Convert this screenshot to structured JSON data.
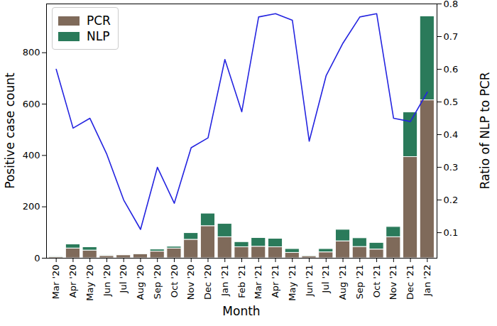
{
  "chart_data": {
    "type": "bar",
    "stacked": true,
    "legend": "upper left",
    "xlabel": "Month",
    "ylabel": "Positive case count",
    "y2label": "Ratio of NLP to PCR",
    "categories": [
      "Mar '20",
      "Apr '20",
      "May '20",
      "Jun '20",
      "Jul '20",
      "Aug '20",
      "Sep '20",
      "Oct '20",
      "Nov '20",
      "Dec '20",
      "Jan '21",
      "Feb '21",
      "Mar '21",
      "Apr '21",
      "May '21",
      "Jun '21",
      "Jul '21",
      "Aug '21",
      "Sep '21",
      "Oct '21",
      "Nov '21",
      "Dec '21",
      "Jan '22"
    ],
    "series": [
      {
        "name": "PCR",
        "type": "bar",
        "color": "#7f6a5a",
        "values": [
          5,
          38,
          30,
          9,
          12,
          16,
          26,
          38,
          72,
          125,
          82,
          43,
          45,
          43,
          21,
          8,
          23,
          66,
          44,
          34,
          82,
          394,
          615
        ]
      },
      {
        "name": "NLP",
        "type": "bar",
        "color": "#2a7a5a",
        "values": [
          3,
          16,
          13,
          3,
          2,
          2,
          8,
          7,
          26,
          49,
          52,
          20,
          34,
          33,
          15,
          3,
          13,
          45,
          34,
          26,
          40,
          174,
          327
        ]
      },
      {
        "name": "Ratio of NLP to PCR",
        "type": "line",
        "axis": "y2",
        "color": "#2424e0",
        "values": [
          0.6,
          0.42,
          0.45,
          0.34,
          0.2,
          0.11,
          0.3,
          0.19,
          0.36,
          0.39,
          0.63,
          0.47,
          0.76,
          0.77,
          0.75,
          0.38,
          0.58,
          0.68,
          0.76,
          0.77,
          0.45,
          0.44,
          0.53
        ]
      }
    ],
    "ylim": [
      0,
      990
    ],
    "yticks": [
      0,
      200,
      400,
      600,
      800
    ],
    "y2lim": [
      0.022,
      0.8
    ],
    "y2ticks": [
      0.1,
      0.2,
      0.3,
      0.4,
      0.5,
      0.6,
      0.7,
      0.8
    ]
  }
}
